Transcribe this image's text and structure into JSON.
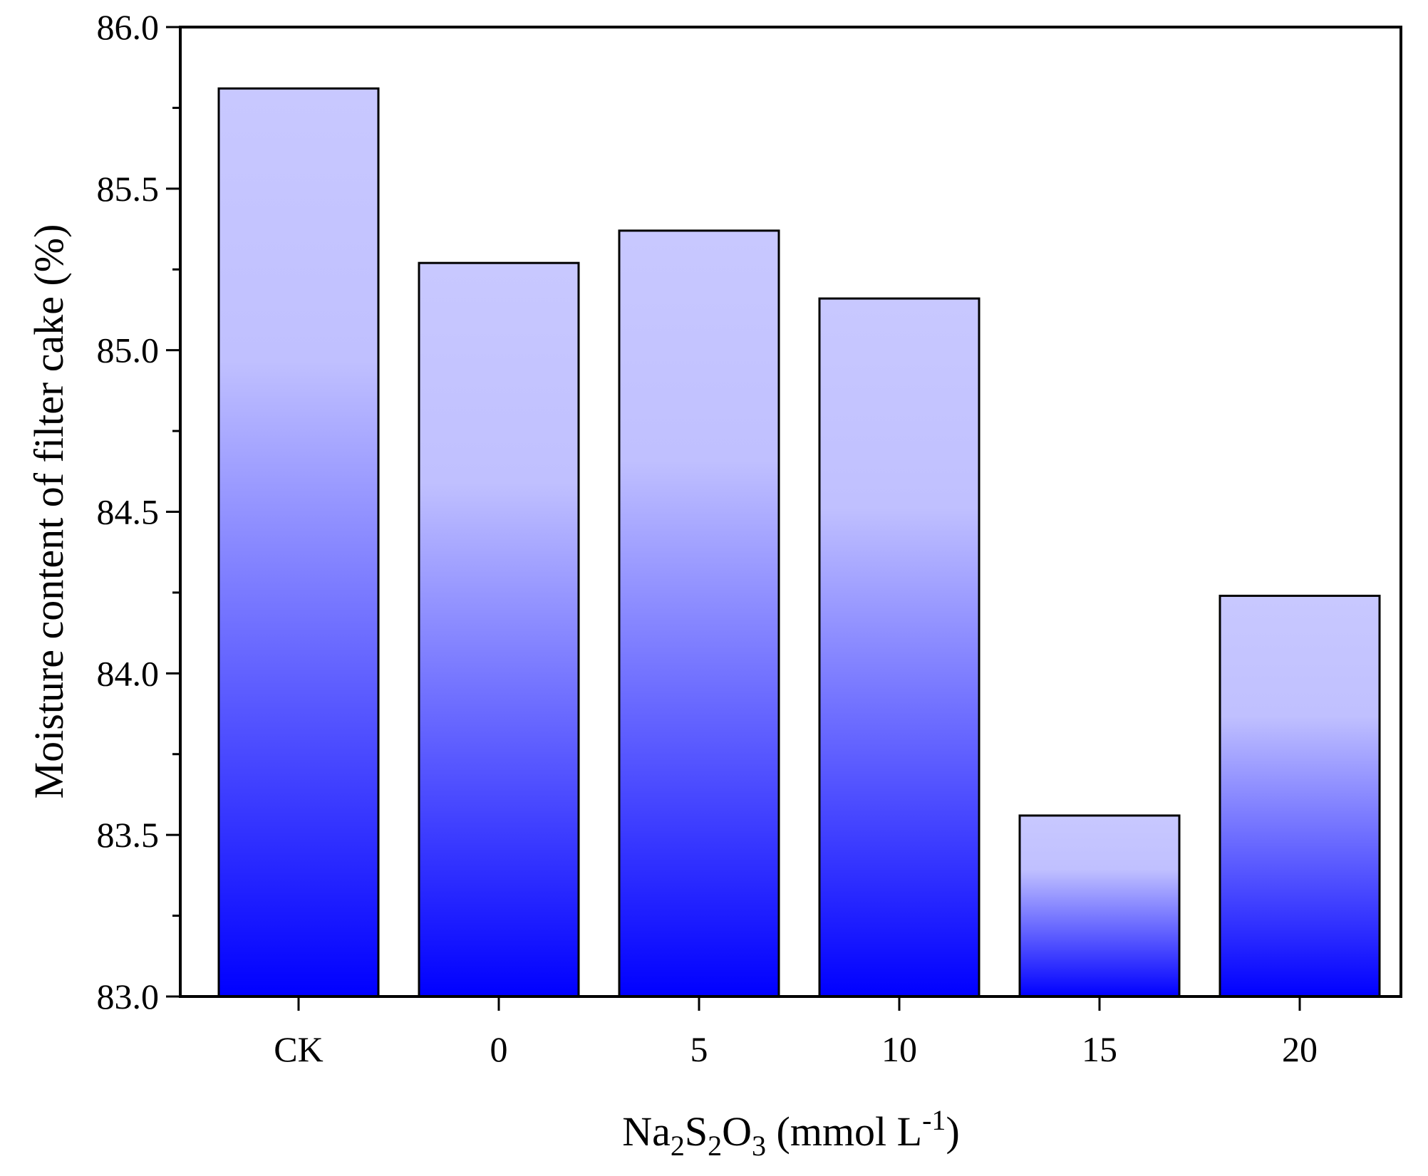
{
  "chart_data": {
    "type": "bar",
    "title": "",
    "xlabel": "Na2S2O3 (mmol L-1)",
    "xlabel_parts": {
      "base": "Na",
      "sub1": "2",
      "s": "S",
      "sub2": "2",
      "o": "O",
      "sub3": "3",
      "rest": " (mmol L",
      "sup": "-1",
      "close": ")"
    },
    "ylabel": "Moisture content of filter cake (%)",
    "categories": [
      "CK",
      "0",
      "5",
      "10",
      "15",
      "20"
    ],
    "values": [
      85.81,
      85.27,
      85.37,
      85.16,
      83.56,
      84.24
    ],
    "ylim": [
      83.0,
      86.0
    ],
    "yticks": [
      "83.0",
      "83.5",
      "84.0",
      "84.5",
      "85.0",
      "85.5",
      "86.0"
    ],
    "grid": false,
    "bar_gradient": {
      "top": "#c8c8ff",
      "bottom": "#0000ff"
    },
    "edge_color": "#000000"
  }
}
